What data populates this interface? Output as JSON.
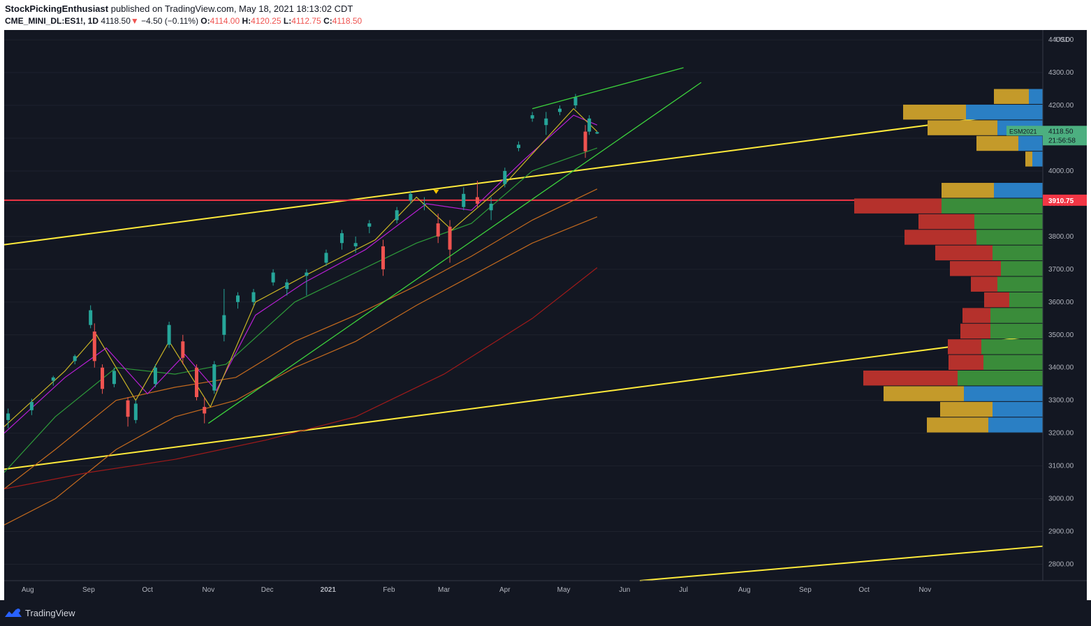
{
  "header": {
    "author": "StockPickingEnthusiast",
    "published_text": "published on TradingView.com, May 18, 2021 18:13:02 CDT",
    "symbol": "CME_MINI_DL:ES1!, 1D",
    "last": "4118.50",
    "change_arrow": "▼",
    "change": "−4.50 (−0.11%)",
    "o_label": "O:",
    "o": "4114.00",
    "h_label": "H:",
    "h": "4120.25",
    "l_label": "L:",
    "l": "4112.75",
    "c_label": "C:",
    "c": "4118.50"
  },
  "price_axis": {
    "currency": "USD",
    "ticks": [
      "4400.00",
      "4300.00",
      "4200.00",
      "4100.00",
      "4000.00",
      "3900.00",
      "3800.00",
      "3700.00",
      "3600.00",
      "3500.00",
      "3400.00",
      "3300.00",
      "3200.00",
      "3100.00",
      "3000.00",
      "2900.00",
      "2800.00"
    ],
    "last_price_label": "4118.50",
    "contract_label": "ESM2021",
    "countdown": "21:56:58",
    "horizontal_line_label": "3910.75"
  },
  "time_axis": {
    "ticks": [
      "Aug",
      "Sep",
      "Oct",
      "Nov",
      "Dec",
      "2021",
      "Feb",
      "Mar",
      "Apr",
      "May",
      "Jun",
      "Jul",
      "Aug",
      "Sep",
      "Oct",
      "Nov"
    ]
  },
  "footer": {
    "brand": "TradingView"
  },
  "colors": {
    "background": "#131722",
    "up_candle": "#26a69a",
    "down_candle": "#ef5350",
    "trendline_yellow": "#ffeb3b",
    "horizontal_red": "#f23645",
    "ma_yellow": "#c8b325",
    "ma_magenta": "#b71fd4",
    "ma_green": "#2e9b3a",
    "ma_orange": "#c46a1e",
    "ma_darkred": "#a01a1a",
    "trend_green": "#3cd23c",
    "vp_red": "#b5312c",
    "vp_green": "#3a8c3a",
    "vp_gold": "#c49a2a",
    "vp_blue": "#2a7fc4"
  },
  "chart_data": {
    "type": "candlestick",
    "symbol": "CME_MINI_DL:ES1!",
    "interval": "1D",
    "ylim": [
      2750,
      4430
    ],
    "x_range": [
      "2020-07-20",
      "2021-12-31"
    ],
    "last_close": 4118.5,
    "horizontal_line": 3910.75,
    "candles": [
      {
        "date": "2020-07-22",
        "o": 3240,
        "h": 3275,
        "l": 3215,
        "c": 3260
      },
      {
        "date": "2020-08-03",
        "o": 3270,
        "h": 3305,
        "l": 3255,
        "c": 3295
      },
      {
        "date": "2020-08-14",
        "o": 3360,
        "h": 3375,
        "l": 3345,
        "c": 3370
      },
      {
        "date": "2020-08-25",
        "o": 3420,
        "h": 3440,
        "l": 3410,
        "c": 3435
      },
      {
        "date": "2020-09-02",
        "o": 3530,
        "h": 3590,
        "l": 3520,
        "c": 3575
      },
      {
        "date": "2020-09-04",
        "o": 3510,
        "h": 3535,
        "l": 3400,
        "c": 3420
      },
      {
        "date": "2020-09-08",
        "o": 3400,
        "h": 3410,
        "l": 3320,
        "c": 3335
      },
      {
        "date": "2020-09-14",
        "o": 3350,
        "h": 3400,
        "l": 3340,
        "c": 3390
      },
      {
        "date": "2020-09-21",
        "o": 3300,
        "h": 3310,
        "l": 3220,
        "c": 3250
      },
      {
        "date": "2020-09-25",
        "o": 3240,
        "h": 3300,
        "l": 3230,
        "c": 3290
      },
      {
        "date": "2020-10-05",
        "o": 3350,
        "h": 3410,
        "l": 3340,
        "c": 3400
      },
      {
        "date": "2020-10-12",
        "o": 3470,
        "h": 3540,
        "l": 3460,
        "c": 3530
      },
      {
        "date": "2020-10-19",
        "o": 3480,
        "h": 3500,
        "l": 3410,
        "c": 3430
      },
      {
        "date": "2020-10-26",
        "o": 3400,
        "h": 3410,
        "l": 3300,
        "c": 3310
      },
      {
        "date": "2020-10-30",
        "o": 3280,
        "h": 3310,
        "l": 3230,
        "c": 3260
      },
      {
        "date": "2020-11-04",
        "o": 3330,
        "h": 3420,
        "l": 3320,
        "c": 3410
      },
      {
        "date": "2020-11-09",
        "o": 3500,
        "h": 3640,
        "l": 3480,
        "c": 3560
      },
      {
        "date": "2020-11-16",
        "o": 3600,
        "h": 3630,
        "l": 3580,
        "c": 3620
      },
      {
        "date": "2020-11-24",
        "o": 3600,
        "h": 3640,
        "l": 3590,
        "c": 3630
      },
      {
        "date": "2020-12-04",
        "o": 3660,
        "h": 3700,
        "l": 3650,
        "c": 3690
      },
      {
        "date": "2020-12-11",
        "o": 3640,
        "h": 3670,
        "l": 3620,
        "c": 3660
      },
      {
        "date": "2020-12-21",
        "o": 3680,
        "h": 3700,
        "l": 3620,
        "c": 3690
      },
      {
        "date": "2020-12-31",
        "o": 3720,
        "h": 3760,
        "l": 3710,
        "c": 3750
      },
      {
        "date": "2021-01-08",
        "o": 3780,
        "h": 3820,
        "l": 3760,
        "c": 3810
      },
      {
        "date": "2021-01-15",
        "o": 3770,
        "h": 3800,
        "l": 3750,
        "c": 3780
      },
      {
        "date": "2021-01-22",
        "o": 3830,
        "h": 3850,
        "l": 3810,
        "c": 3840
      },
      {
        "date": "2021-01-29",
        "o": 3770,
        "h": 3790,
        "l": 3680,
        "c": 3700
      },
      {
        "date": "2021-02-05",
        "o": 3850,
        "h": 3890,
        "l": 3840,
        "c": 3880
      },
      {
        "date": "2021-02-12",
        "o": 3910,
        "h": 3940,
        "l": 3900,
        "c": 3930
      },
      {
        "date": "2021-02-19",
        "o": 3900,
        "h": 3920,
        "l": 3880,
        "c": 3900
      },
      {
        "date": "2021-02-26",
        "o": 3840,
        "h": 3870,
        "l": 3780,
        "c": 3800
      },
      {
        "date": "2021-03-04",
        "o": 3830,
        "h": 3850,
        "l": 3720,
        "c": 3760
      },
      {
        "date": "2021-03-11",
        "o": 3890,
        "h": 3950,
        "l": 3880,
        "c": 3930
      },
      {
        "date": "2021-03-18",
        "o": 3920,
        "h": 3970,
        "l": 3890,
        "c": 3900
      },
      {
        "date": "2021-03-25",
        "o": 3880,
        "h": 3920,
        "l": 3850,
        "c": 3900
      },
      {
        "date": "2021-04-01",
        "o": 3960,
        "h": 4010,
        "l": 3950,
        "c": 4000
      },
      {
        "date": "2021-04-08",
        "o": 4070,
        "h": 4090,
        "l": 4060,
        "c": 4080
      },
      {
        "date": "2021-04-15",
        "o": 4160,
        "h": 4180,
        "l": 4150,
        "c": 4170
      },
      {
        "date": "2021-04-22",
        "o": 4140,
        "h": 4180,
        "l": 4110,
        "c": 4160
      },
      {
        "date": "2021-04-29",
        "o": 4180,
        "h": 4200,
        "l": 4170,
        "c": 4190
      },
      {
        "date": "2021-05-07",
        "o": 4200,
        "h": 4235,
        "l": 4190,
        "c": 4225
      },
      {
        "date": "2021-05-12",
        "o": 4120,
        "h": 4140,
        "l": 4040,
        "c": 4060
      },
      {
        "date": "2021-05-14",
        "o": 4120,
        "h": 4170,
        "l": 4110,
        "c": 4160
      },
      {
        "date": "2021-05-18",
        "o": 4114.0,
        "h": 4120.25,
        "l": 4112.75,
        "c": 4118.5
      }
    ],
    "volume_profile_levels": [
      4225,
      4175,
      4125,
      4075,
      4025,
      3975,
      3925,
      3875,
      3825,
      3775,
      3725,
      3675,
      3625,
      3575,
      3525,
      3475,
      3425,
      3375,
      3325,
      3275,
      3225
    ]
  }
}
